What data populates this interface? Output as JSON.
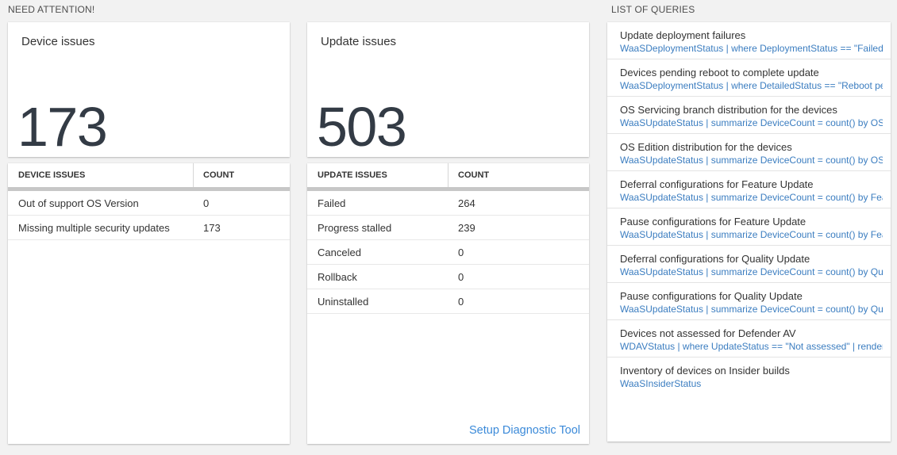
{
  "headings": {
    "need_attention": "NEED ATTENTION!",
    "list_of_queries": "LIST OF QUERIES"
  },
  "device_card": {
    "title": "Device issues",
    "count": "173"
  },
  "update_card": {
    "title": "Update issues",
    "count": "503"
  },
  "device_table": {
    "headers": [
      "DEVICE ISSUES",
      "COUNT"
    ],
    "rows": [
      {
        "label": "Out of support OS Version",
        "count": "0"
      },
      {
        "label": "Missing multiple security updates",
        "count": "173"
      }
    ]
  },
  "update_table": {
    "headers": [
      "UPDATE ISSUES",
      "COUNT"
    ],
    "rows": [
      {
        "label": "Failed",
        "count": "264"
      },
      {
        "label": "Progress stalled",
        "count": "239"
      },
      {
        "label": "Canceled",
        "count": "0"
      },
      {
        "label": "Rollback",
        "count": "0"
      },
      {
        "label": "Uninstalled",
        "count": "0"
      }
    ],
    "footer_link": "Setup Diagnostic Tool"
  },
  "queries": [
    {
      "title": "Update deployment failures",
      "query": "WaaSDeploymentStatus | where DeploymentStatus == \"Failed\" |..."
    },
    {
      "title": "Devices pending reboot to complete update",
      "query": "WaaSDeploymentStatus | where DetailedStatus == \"Reboot pend..."
    },
    {
      "title": "OS Servicing branch distribution for the devices",
      "query": "WaaSUpdateStatus | summarize DeviceCount = count() by OSSer..."
    },
    {
      "title": "OS Edition distribution for the devices",
      "query": "WaaSUpdateStatus | summarize DeviceCount = count() by OSEdit..."
    },
    {
      "title": "Deferral configurations for Feature Update",
      "query": "WaaSUpdateStatus | summarize DeviceCount = count() by Featur..."
    },
    {
      "title": "Pause configurations for Feature Update",
      "query": "WaaSUpdateStatus | summarize DeviceCount = count() by Featur..."
    },
    {
      "title": "Deferral configurations for Quality Update",
      "query": "WaaSUpdateStatus | summarize DeviceCount = count() by Qualit..."
    },
    {
      "title": "Pause configurations for Quality Update",
      "query": "WaaSUpdateStatus | summarize DeviceCount = count() by Qualit..."
    },
    {
      "title": "Devices not assessed for Defender AV",
      "query": "WDAVStatus | where UpdateStatus == \"Not assessed\" | render ta..."
    },
    {
      "title": "Inventory of devices on Insider builds",
      "query": "WaaSInsiderStatus"
    }
  ],
  "colors": {
    "page_background": "#f2f2f2",
    "query_link_blue": "#3b7dc0",
    "diagnostic_link_blue": "#3b8ad9",
    "big_number_color": "#333b45",
    "table_header_bar_gray": "#c7c7c7"
  }
}
